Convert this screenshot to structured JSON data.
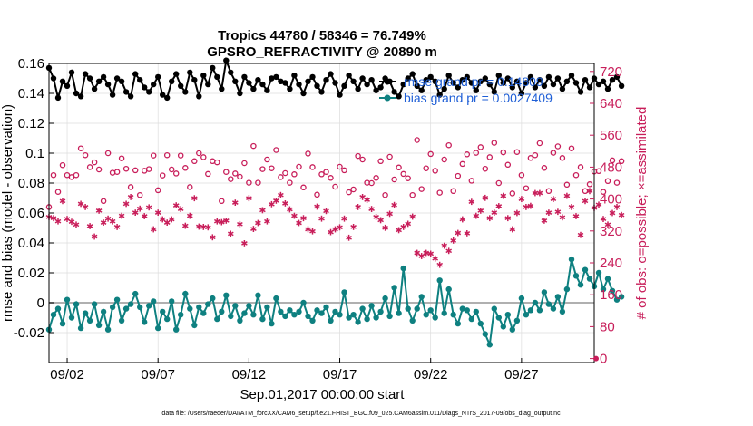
{
  "chart_data": {
    "type": "line",
    "title": "Tropics 44780 / 58346 = 76.749%",
    "subtitle": "GPSRO_REFRACTIVITY @ 20890 m",
    "xlabel": "Sep.01,2017 00:00:00 start",
    "ylabel_left": "rmse and bias (model - observation)",
    "ylabel_right": "# of obs: o=possible; ×=assimilated",
    "footer": "data file: /Users/raeder/DAI/ATM_forcXX/CAM6_setup/f.e21.FHIST_BGC.f09_025.CAM6assim.011/Diags_NTrS_2017-09/obs_diag_output.nc",
    "x_ticks": [
      "09/02",
      "09/07",
      "09/12",
      "09/17",
      "09/22",
      "09/27"
    ],
    "x_tick_days": [
      2,
      7,
      12,
      17,
      22,
      27
    ],
    "xlim_days": [
      1.0,
      31.0
    ],
    "ylim_left": [
      -0.04,
      0.16
    ],
    "y_ticks_left": [
      "-0.02",
      "0",
      "0.02",
      "0.04",
      "0.06",
      "0.08",
      "0.1",
      "0.12",
      "0.14",
      "0.16"
    ],
    "y_tick_values_left": [
      -0.02,
      0,
      0.02,
      0.04,
      0.06,
      0.08,
      0.1,
      0.12,
      0.14,
      0.16
    ],
    "ylim_right": [
      -10,
      740
    ],
    "y_ticks_right": [
      "0",
      "80",
      "160",
      "240",
      "320",
      "400",
      "480",
      "560",
      "640",
      "720"
    ],
    "y_tick_values_right": [
      0,
      80,
      160,
      240,
      320,
      400,
      480,
      560,
      640,
      720
    ],
    "legend": [
      {
        "label": "rmse grand pr = 0.14809",
        "color": "#000000"
      },
      {
        "label": "bias grand pr = 0.0027409",
        "color": "#0e8080"
      }
    ],
    "colors": {
      "rmse": "#000000",
      "bias": "#0e8080",
      "obs": "#c81e5a",
      "grid": "#dcdcdc",
      "zero_line": "#b0b0b0"
    },
    "series": [
      {
        "name": "rmse",
        "axis": "left",
        "start_day": 1.0,
        "step_days": 0.25,
        "values": [
          0.157,
          0.15,
          0.137,
          0.148,
          0.145,
          0.154,
          0.14,
          0.138,
          0.153,
          0.15,
          0.143,
          0.148,
          0.151,
          0.146,
          0.139,
          0.15,
          0.148,
          0.141,
          0.138,
          0.153,
          0.149,
          0.144,
          0.141,
          0.146,
          0.151,
          0.139,
          0.137,
          0.148,
          0.153,
          0.145,
          0.141,
          0.154,
          0.149,
          0.138,
          0.152,
          0.146,
          0.157,
          0.151,
          0.143,
          0.162,
          0.154,
          0.148,
          0.14,
          0.151,
          0.147,
          0.143,
          0.149,
          0.146,
          0.142,
          0.15,
          0.151,
          0.148,
          0.147,
          0.143,
          0.152,
          0.146,
          0.14,
          0.148,
          0.151,
          0.145,
          0.141,
          0.149,
          0.153,
          0.147,
          0.139,
          0.145,
          0.152,
          0.148,
          0.143,
          0.15,
          0.146,
          0.149,
          0.142,
          0.144,
          0.15,
          0.148,
          0.141,
          0.138,
          0.146,
          0.15,
          0.153,
          0.145,
          0.142,
          0.149,
          0.151,
          0.148,
          0.139,
          0.143,
          0.152,
          0.147,
          0.144,
          0.149,
          0.151,
          0.147,
          0.142,
          0.148,
          0.15,
          0.146,
          0.141,
          0.152,
          0.147,
          0.15,
          0.144,
          0.148,
          0.14,
          0.147,
          0.151,
          0.144,
          0.149,
          0.145,
          0.151,
          0.146,
          0.15,
          0.143,
          0.148,
          0.152,
          0.147,
          0.141,
          0.149,
          0.144,
          0.15,
          0.146,
          0.148,
          0.143,
          0.149,
          0.151,
          0.145
        ],
        "marker": "filled-circle"
      },
      {
        "name": "bias",
        "axis": "left",
        "start_day": 1.0,
        "step_days": 0.25,
        "values": [
          -0.018,
          -0.008,
          -0.004,
          -0.014,
          0.002,
          -0.01,
          -0.001,
          -0.017,
          -0.007,
          -0.012,
          -0.001,
          -0.015,
          -0.006,
          -0.018,
          -0.003,
          0.002,
          -0.012,
          -0.004,
          -0.001,
          0.006,
          -0.003,
          -0.013,
          -0.002,
          0.001,
          -0.017,
          -0.006,
          -0.011,
          0.001,
          -0.018,
          -0.008,
          0.006,
          -0.004,
          -0.015,
          -0.003,
          -0.007,
          -0.001,
          0.003,
          -0.011,
          -0.006,
          0.005,
          -0.009,
          -0.002,
          -0.012,
          -0.007,
          -0.002,
          -0.008,
          0.005,
          -0.011,
          -0.003,
          -0.014,
          0.003,
          -0.006,
          -0.009,
          -0.005,
          -0.008,
          -0.006,
          0.0,
          -0.009,
          -0.012,
          -0.005,
          -0.007,
          -0.003,
          -0.012,
          -0.006,
          -0.008,
          0.007,
          -0.01,
          -0.008,
          -0.013,
          -0.004,
          -0.011,
          -0.002,
          -0.01,
          -0.006,
          0.003,
          -0.009,
          0.01,
          -0.007,
          0.023,
          -0.004,
          -0.012,
          -0.004,
          0.004,
          -0.008,
          -0.005,
          -0.01,
          0.015,
          -0.007,
          0.009,
          -0.008,
          -0.014,
          -0.004,
          -0.005,
          -0.011,
          -0.006,
          -0.014,
          -0.021,
          -0.028,
          -0.004,
          -0.01,
          -0.016,
          -0.008,
          -0.018,
          -0.012,
          0.003,
          -0.008,
          -0.005,
          0.0,
          -0.005,
          0.007,
          -0.001,
          -0.004,
          0.004,
          -0.006,
          0.009,
          0.029,
          0.018,
          0.012,
          0.022,
          0.016,
          0.011,
          0.02,
          0.009,
          0.016,
          0.008,
          0.002,
          0.004
        ],
        "marker": "filled-circle"
      },
      {
        "name": "possible",
        "axis": "right",
        "start_day": 1.0,
        "step_days": 0.25,
        "values": [
          380,
          460,
          418,
          485,
          460,
          455,
          460,
          527,
          510,
          480,
          492,
          474,
          395,
          515,
          466,
          468,
          502,
          476,
          430,
          472,
          410,
          471,
          475,
          509,
          422,
          459,
          510,
          474,
          464,
          509,
          478,
          430,
          495,
          515,
          505,
          463,
          495,
          492,
          395,
          468,
          450,
          464,
          456,
          490,
          441,
          533,
          441,
          475,
          499,
          477,
          523,
          455,
          465,
          441,
          462,
          481,
          429,
          514,
          480,
          411,
          462,
          468,
          453,
          431,
          481,
          472,
          417,
          424,
          508,
          499,
          441,
          440,
          453,
          495,
          410,
          506,
          449,
          479,
          463,
          452,
          410,
          548,
          425,
          477,
          513,
          471,
          416,
          499,
          535,
          420,
          458,
          488,
          512,
          446,
          516,
          530,
          476,
          505,
          541,
          440,
          517,
          486,
          414,
          518,
          460,
          427,
          503,
          510,
          540,
          478,
          420,
          516,
          532,
          503,
          436,
          527,
          460,
          480,
          420,
          437,
          469,
          470,
          418,
          445,
          497,
          441,
          495
        ],
        "marker": "open-circle"
      },
      {
        "name": "assimilated",
        "axis": "right",
        "start_day": 1.0,
        "step_days": 0.25,
        "values": [
          355,
          352,
          344,
          395,
          350,
          343,
          336,
          388,
          380,
          332,
          306,
          371,
          341,
          351,
          344,
          330,
          358,
          388,
          405,
          366,
          376,
          357,
          379,
          324,
          366,
          349,
          341,
          349,
          384,
          375,
          333,
          358,
          402,
          331,
          330,
          329,
          304,
          344,
          342,
          346,
          313,
          391,
          337,
          289,
          402,
          325,
          340,
          372,
          344,
          387,
          396,
          410,
          389,
          374,
          358,
          340,
          352,
          324,
          319,
          381,
          351,
          370,
          317,
          324,
          329,
          351,
          303,
          330,
          380,
          405,
          398,
          375,
          355,
          347,
          328,
          363,
          385,
          322,
          330,
          338,
          356,
          265,
          257,
          265,
          263,
          251,
          235,
          283,
          270,
          296,
          315,
          349,
          314,
          393,
          358,
          371,
          403,
          352,
          366,
          382,
          408,
          352,
          324,
          365,
          400,
          380,
          383,
          415,
          415,
          346,
          366,
          400,
          368,
          354,
          408,
          380,
          357,
          310,
          395,
          420,
          378,
          386,
          350,
          336,
          365,
          380,
          360
        ],
        "marker": "asterisk"
      }
    ]
  }
}
